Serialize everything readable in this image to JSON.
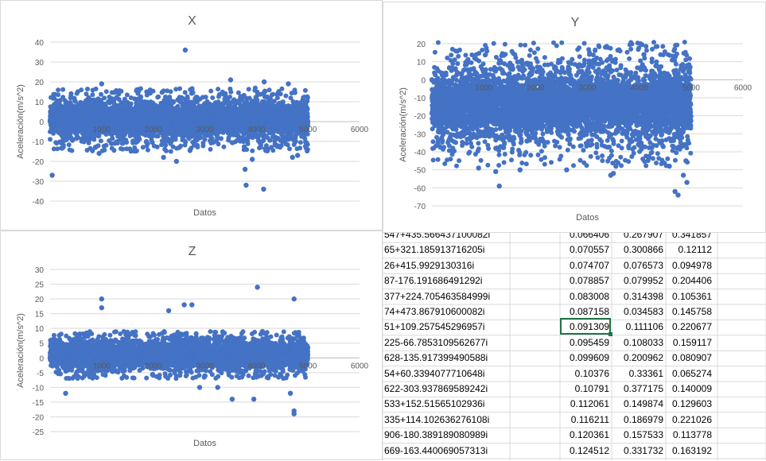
{
  "chart_data": [
    {
      "type": "scatter",
      "title": "X",
      "xlabel": "Datos",
      "ylabel": "Aceleración(m/s^2)",
      "xlim": [
        0,
        6000
      ],
      "ylim": [
        -40,
        40
      ],
      "xticks": [
        "1000",
        "2000",
        "3000",
        "4000",
        "5000",
        "6000"
      ],
      "yticks": [
        "40",
        "30",
        "20",
        "10",
        "0",
        "-10",
        "-20",
        "-30",
        "-40"
      ],
      "color": "#4472c4",
      "n_points": 5000,
      "band": [
        -9,
        11
      ],
      "outliers": [
        [
          2620,
          36
        ],
        [
          1000,
          19
        ],
        [
          3500,
          21
        ],
        [
          4150,
          20
        ],
        [
          4620,
          19
        ],
        [
          40,
          -27
        ],
        [
          3800,
          -32
        ],
        [
          4140,
          -34
        ],
        [
          3780,
          -24
        ],
        [
          2450,
          -20
        ],
        [
          4700,
          -18
        ],
        [
          2200,
          -18
        ],
        [
          3920,
          -19
        ],
        [
          950,
          -16
        ],
        [
          4800,
          -17
        ]
      ]
    },
    {
      "type": "scatter",
      "title": "Y",
      "xlabel": "Datos",
      "ylabel": "Aceleración(m/s^2)",
      "xlim": [
        0,
        6000
      ],
      "ylim": [
        -70,
        20
      ],
      "xticks": [
        "1000",
        "2000",
        "3000",
        "4000",
        "5000",
        "6000"
      ],
      "yticks": [
        "20",
        "10",
        "0",
        "-10",
        "-20",
        "-30",
        "-40",
        "-50",
        "-60",
        "-70"
      ],
      "color": "#4472c4",
      "n_points": 5000,
      "band": [
        -35,
        8
      ],
      "outliers": [
        [
          4090,
          14
        ],
        [
          4690,
          -62
        ],
        [
          4750,
          -64
        ],
        [
          4920,
          -57
        ],
        [
          1300,
          -59
        ],
        [
          4850,
          -53
        ],
        [
          3500,
          -52
        ],
        [
          1230,
          -51
        ],
        [
          900,
          -49
        ],
        [
          2600,
          -50
        ],
        [
          3450,
          -53
        ],
        [
          4580,
          -48
        ],
        [
          4900,
          -45
        ],
        [
          1700,
          -50
        ],
        [
          3550,
          -48
        ]
      ]
    },
    {
      "type": "scatter",
      "title": "Z",
      "xlabel": "Datos",
      "ylabel": "Aceleración(m/s^2)",
      "xlim": [
        0,
        6000
      ],
      "ylim": [
        -25,
        30
      ],
      "xticks": [
        "1000",
        "2000",
        "3000",
        "4000",
        "5000",
        "6000"
      ],
      "yticks": [
        "30",
        "25",
        "20",
        "15",
        "10",
        "5",
        "0",
        "-5",
        "-10",
        "-15",
        "-20",
        "-25"
      ],
      "color": "#4472c4",
      "n_points": 5000,
      "band": [
        -4,
        6
      ],
      "outliers": [
        [
          1000,
          20
        ],
        [
          1000,
          17
        ],
        [
          4020,
          24
        ],
        [
          4730,
          20
        ],
        [
          2600,
          18
        ],
        [
          2750,
          18
        ],
        [
          2300,
          16
        ],
        [
          3950,
          -14
        ],
        [
          3530,
          -14
        ],
        [
          4730,
          -19
        ],
        [
          4730,
          -18
        ],
        [
          300,
          -12
        ],
        [
          3250,
          -10
        ],
        [
          4660,
          -12
        ],
        [
          2900,
          -10
        ]
      ]
    }
  ],
  "sheet": {
    "rows": [
      {
        "formula": "547+435.566437100082i",
        "a": "0.066406",
        "b": "0.267907",
        "c": "0.341857"
      },
      {
        "formula": "65+321.185913716205i",
        "a": "0.070557",
        "b": "0.300866",
        "c": "0.12112"
      },
      {
        "formula": "26+415.9929130316i",
        "a": "0.074707",
        "b": "0.076573",
        "c": "0.094978"
      },
      {
        "formula": "87-176.191686491292i",
        "a": "0.078857",
        "b": "0.079952",
        "c": "0.204406"
      },
      {
        "formula": "377+224.705463584999i",
        "a": "0.083008",
        "b": "0.314398",
        "c": "0.105361"
      },
      {
        "formula": "74+473.867910600082i",
        "a": "0.087158",
        "b": "0.034583",
        "c": "0.145758"
      },
      {
        "formula": "51+109.257545296957i",
        "a": "0.091309",
        "b": "0.111106",
        "c": "0.220677"
      },
      {
        "formula": "225-66.7853109562677i",
        "a": "0.095459",
        "b": "0.108033",
        "c": "0.159117"
      },
      {
        "formula": "628-135.917399490588i",
        "a": "0.099609",
        "b": "0.200962",
        "c": "0.080907"
      },
      {
        "formula": "54+60.3394077710648i",
        "a": "0.10376",
        "b": "0.33361",
        "c": "0.065274"
      },
      {
        "formula": "622-303.937869589242i",
        "a": "0.10791",
        "b": "0.377175",
        "c": "0.140009"
      },
      {
        "formula": "533+152.51565102936i",
        "a": "0.112061",
        "b": "0.149874",
        "c": "0.129603"
      },
      {
        "formula": "335+114.102636276108i",
        "a": "0.116211",
        "b": "0.186979",
        "c": "0.221026"
      },
      {
        "formula": "906-180.389189080989i",
        "a": "0.120361",
        "b": "0.157533",
        "c": "0.113778"
      },
      {
        "formula": "669-163.440069057313i",
        "a": "0.124512",
        "b": "0.331732",
        "c": "0.163192"
      }
    ]
  }
}
